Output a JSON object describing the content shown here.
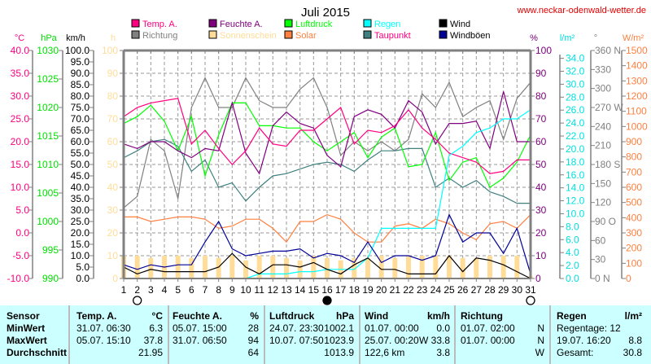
{
  "chart_data": {
    "type": "line",
    "title": "Juli 2015",
    "source": "www.neckar-odenwald-wetter.de",
    "x": [
      1,
      2,
      3,
      4,
      5,
      6,
      7,
      8,
      9,
      10,
      11,
      12,
      13,
      14,
      15,
      16,
      17,
      18,
      19,
      20,
      21,
      22,
      23,
      24,
      25,
      26,
      27,
      28,
      29,
      30,
      31
    ],
    "xlim": [
      1,
      31
    ],
    "moon_markers": [
      {
        "day": 2,
        "phase": "full"
      },
      {
        "day": 16,
        "phase": "new"
      },
      {
        "day": 31,
        "phase": "full"
      }
    ],
    "legend": [
      {
        "name": "Temp. A.",
        "color": "#ff0080",
        "text_color": "#ff0080"
      },
      {
        "name": "Feuchte A.",
        "color": "#800080",
        "text_color": "#800080"
      },
      {
        "name": "Luftdruck",
        "color": "#00ff00",
        "text_color": "#00ff00"
      },
      {
        "name": "Regen",
        "color": "#00ffff",
        "text_color": "#00ffff"
      },
      {
        "name": "Wind",
        "color": "#000000",
        "text_color": "#000000"
      },
      {
        "name": "Richtung",
        "color": "#808080",
        "text_color": "#808080"
      },
      {
        "name": "Sonnenschein",
        "color": "#ffdd99",
        "text_color": "#ffdd99"
      },
      {
        "name": "Solar",
        "color": "#ff8040",
        "text_color": "#ff8040"
      },
      {
        "name": "Taupunkt",
        "color": "#408080",
        "text_color": "#ff0080"
      },
      {
        "name": "Windböen",
        "color": "#000099",
        "text_color": "#000000"
      }
    ],
    "axes": {
      "temp": {
        "unit": "°C",
        "color": "#ff0080",
        "range": [
          -10,
          40
        ],
        "ticks": [
          "40.0",
          "35.0",
          "30.0",
          "25.0",
          "20.0",
          "15.0",
          "10.0",
          "5.0",
          "0.0",
          "-5.0",
          "-10.0"
        ]
      },
      "pressure": {
        "unit": "hPa",
        "color": "#00e000",
        "range": [
          990,
          1030
        ],
        "ticks": [
          "1030",
          "1025",
          "1020",
          "1015",
          "1010",
          "1005",
          "1000",
          "995",
          "990"
        ]
      },
      "wind": {
        "unit": "km/h",
        "color": "#000000",
        "range": [
          0,
          100
        ],
        "ticks": [
          "100.0",
          "95.0",
          "90.0",
          "85.0",
          "80.0",
          "75.0",
          "70.0",
          "65.0",
          "60.0",
          "55.0",
          "50.0",
          "45.0",
          "40.0",
          "35.0",
          "30.0",
          "25.0",
          "20.0",
          "15.0",
          "10.0",
          "5.0",
          "0.0"
        ]
      },
      "sun": {
        "unit": "h",
        "color": "#ffdd99",
        "range": [
          0,
          100
        ],
        "ticks": [
          "100",
          "90",
          "80",
          "70",
          "60",
          "50",
          "40",
          "30",
          "20",
          "10",
          "0"
        ]
      },
      "humidity": {
        "unit": "%",
        "color": "#800080",
        "range": [
          0,
          100
        ],
        "ticks": [
          "100",
          "90",
          "80",
          "70",
          "60",
          "50",
          "40",
          "30",
          "20",
          "10",
          "0"
        ]
      },
      "rain": {
        "unit": "l/m²",
        "color": "#00e0e0",
        "range": [
          0,
          34
        ],
        "ticks": [
          "34.0",
          "32.0",
          "30.0",
          "28.0",
          "26.0",
          "24.0",
          "22.0",
          "20.0",
          "18.0",
          "16.0",
          "14.0",
          "12.0",
          "10.0",
          "8.0",
          "6.0",
          "4.0",
          "2.0",
          "0.0"
        ]
      },
      "direction": {
        "unit": "°",
        "color": "#808080",
        "range": [
          0,
          360
        ],
        "ticks": [
          "360 N",
          "330",
          "300",
          "270 W",
          "240",
          "210",
          "180 S",
          "150",
          "120",
          "90  O",
          "60",
          "30",
          "0   N"
        ]
      },
      "solar": {
        "unit": "W/m²",
        "color": "#ff8040",
        "range": [
          0,
          1500
        ],
        "ticks": [
          "1500",
          "1400",
          "1300",
          "1200",
          "1100",
          "1000",
          "900",
          "800",
          "700",
          "600",
          "500",
          "400",
          "300",
          "200",
          "100",
          "0"
        ]
      }
    },
    "series": [
      {
        "name": "Temp. A.",
        "scale": "percent",
        "values": [
          71,
          75,
          77,
          78,
          79,
          59,
          65,
          57,
          50,
          56,
          66,
          59,
          58,
          65,
          65,
          70,
          75,
          59,
          65,
          64,
          67,
          74,
          66,
          61,
          55,
          53,
          51,
          46,
          47,
          52,
          52
        ]
      },
      {
        "name": "Feuchte A.",
        "scale": "percent",
        "values": [
          59,
          57,
          60,
          60,
          56,
          53,
          57,
          56,
          77,
          55,
          46,
          67,
          73,
          68,
          66,
          54,
          49,
          71,
          74,
          72,
          66,
          78,
          73,
          59,
          68,
          68,
          69,
          57,
          82,
          60,
          60
        ]
      },
      {
        "name": "Luftdruck",
        "scale": "percent",
        "values": [
          68,
          71,
          76,
          69,
          56,
          71,
          45,
          63,
          77,
          77,
          67,
          67,
          66,
          66,
          60,
          56,
          60,
          64,
          53,
          62,
          66,
          49,
          50,
          64,
          43,
          51,
          53,
          40,
          44,
          51,
          63
        ]
      },
      {
        "name": "Regen",
        "scale": "percent",
        "values": [
          0,
          0,
          0,
          0,
          0,
          0,
          0,
          0,
          0,
          0,
          2,
          2,
          2,
          3,
          3,
          4,
          4,
          4,
          9,
          22,
          22,
          22,
          22,
          22,
          54,
          58,
          64,
          66,
          70,
          70,
          74
        ]
      },
      {
        "name": "Wind",
        "scale": "percent",
        "values": [
          5,
          2,
          4,
          3,
          3,
          3,
          3,
          5,
          11,
          5,
          2,
          6,
          6,
          5,
          7,
          4,
          2,
          6,
          9,
          4,
          4,
          2,
          2,
          2,
          10,
          3,
          9,
          8,
          6,
          3,
          0
        ]
      },
      {
        "name": "Richtung",
        "scale": "percent",
        "values": [
          31,
          36,
          61,
          56,
          35,
          75,
          88,
          75,
          75,
          88,
          78,
          75,
          75,
          83,
          88,
          75,
          54,
          60,
          56,
          60,
          56,
          61,
          81,
          75,
          86,
          71,
          75,
          78,
          61,
          79,
          86
        ]
      },
      {
        "name": "Sonnenschein",
        "scale": "percent",
        "values": [
          10,
          10,
          9,
          10,
          10,
          9,
          10,
          9,
          10,
          8,
          10,
          10,
          9,
          8,
          10,
          9,
          8,
          9,
          9,
          10,
          9,
          10,
          10,
          10,
          10,
          9,
          9,
          10,
          10,
          10,
          1
        ]
      },
      {
        "name": "Solar",
        "scale": "percent",
        "values": [
          27,
          27,
          25,
          26,
          27,
          27,
          26,
          22,
          23,
          26,
          26,
          22,
          16,
          25,
          25,
          28,
          26,
          20,
          16,
          16,
          23,
          24,
          22,
          26,
          24,
          20,
          17,
          24,
          25,
          22,
          28
        ]
      },
      {
        "name": "Taupunkt",
        "scale": "percent",
        "values": [
          53,
          56,
          60,
          61,
          58,
          47,
          52,
          40,
          42,
          34,
          40,
          45,
          46,
          48,
          50,
          51,
          50,
          47,
          52,
          56,
          56,
          57,
          57,
          40,
          44,
          40,
          43,
          38,
          36,
          33,
          33
        ]
      },
      {
        "name": "Windböen",
        "scale": "percent",
        "values": [
          6,
          4,
          6,
          5,
          6,
          6,
          16,
          25,
          13,
          10,
          11,
          12,
          12,
          13,
          9,
          11,
          10,
          7,
          16,
          7,
          10,
          10,
          8,
          10,
          28,
          16,
          20,
          20,
          11,
          22,
          2
        ]
      }
    ]
  },
  "table": {
    "sensor": {
      "title": "Sensor",
      "rows": [
        "MinWert",
        "MaxWert",
        "Durchschnitt"
      ]
    },
    "temp": {
      "title": "Temp. A.",
      "unit": "°C",
      "min_time": "31.07.  06:30",
      "min_val": "6.3",
      "max_time": "05.07.  15:10",
      "max_val": "37.8",
      "avg": "21.95"
    },
    "humidity": {
      "title": "Feuchte A.",
      "unit": "%",
      "min_time": "05.07.  15:00",
      "min_val": "28",
      "max_time": "31.07.  06:50",
      "max_val": "94",
      "avg": "64"
    },
    "pressure": {
      "title": "Luftdruck",
      "unit": "hPa",
      "min_time": "24.07.  23:30",
      "min_val": "1002.1",
      "max_time": "10.07.  07:50",
      "max_val": "1023.9",
      "avg": "1013.9"
    },
    "wind": {
      "title": "Wind",
      "unit": "km/h",
      "min_time": "01.07.  00:00",
      "min_val": "0.0",
      "max_time": "25.07.  00:20",
      "max_val": "W 33.8",
      "avg_label": "122,6 km",
      "avg": "3.8"
    },
    "direction": {
      "title": "Richtung",
      "min_time": "01.07.  02:00",
      "min_val": "N",
      "max_time": "01.07.  00:00",
      "max_val": "N",
      "avg": "W"
    },
    "rain": {
      "title": "Regen",
      "unit": "l/m²",
      "days": "Regentage: 12",
      "max_time": "19.07.  16:20",
      "max_val": "8.8",
      "total_label": "Gesamt:",
      "total": "30.8"
    }
  }
}
